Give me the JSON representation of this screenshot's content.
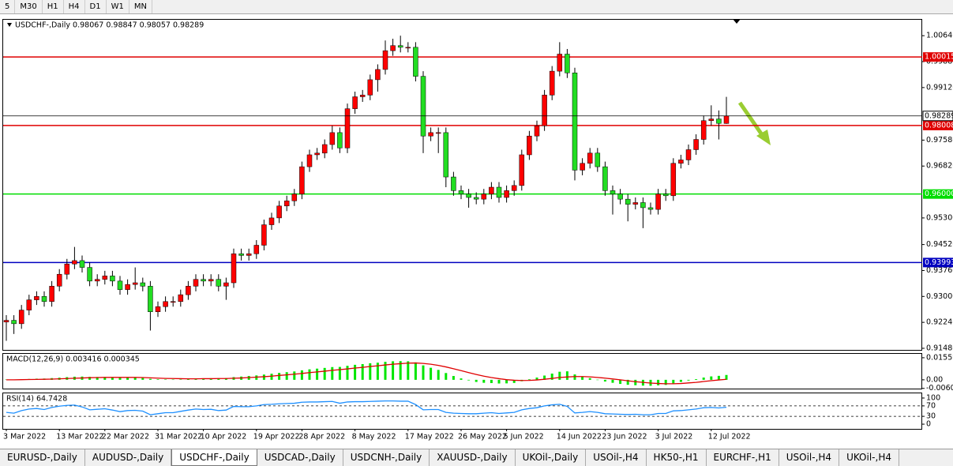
{
  "toolbar": [
    "5",
    "M30",
    "H1",
    "H4",
    "D1",
    "W1",
    "MN"
  ],
  "tabs": [
    "EURUSD-,Daily",
    "AUDUSD-,Daily",
    "USDCHF-,Daily",
    "USDCAD-,Daily",
    "USDCNH-,Daily",
    "XAUUSD-,Daily",
    "UKOil-,Daily",
    "USOil-,H4",
    "HK50-,H1",
    "EURCHF-,H1",
    "USOil-,H4",
    "UKOil-,H4"
  ],
  "active_tab": 2,
  "chart_data": [
    {
      "type": "candlestick",
      "title": "USDCHF-,Daily  0.98067 0.98847 0.98057 0.98289",
      "categories": [
        "3 Mar 2022",
        null,
        null,
        null,
        null,
        null,
        null,
        "13 Mar 2022",
        null,
        null,
        null,
        null,
        null,
        "22 Mar 2022",
        null,
        null,
        null,
        null,
        null,
        null,
        "31 Mar 2022",
        null,
        null,
        null,
        null,
        null,
        "10 Apr 2022",
        null,
        null,
        null,
        null,
        null,
        null,
        "19 Apr 2022",
        null,
        null,
        null,
        null,
        null,
        "28 Apr 2022",
        null,
        null,
        null,
        null,
        null,
        null,
        "8 May 2022",
        null,
        null,
        null,
        null,
        null,
        null,
        "17 May 2022",
        null,
        null,
        null,
        null,
        null,
        null,
        "26 May 2022",
        null,
        null,
        null,
        null,
        null,
        "5 Jun 2022",
        null,
        null,
        null,
        null,
        null,
        null,
        "14 Jun 2022",
        null,
        null,
        null,
        null,
        null,
        "23 Jun 2022",
        null,
        null,
        null,
        null,
        null,
        null,
        "3 Jul 2022",
        null,
        null,
        null,
        null,
        null,
        null,
        "12 Jul 2022",
        null,
        null
      ],
      "open": [
        0.9225,
        0.923,
        0.922,
        0.926,
        0.929,
        0.93,
        0.9285,
        0.933,
        0.9365,
        0.9395,
        0.9405,
        0.9385,
        0.9345,
        0.935,
        0.936,
        0.9345,
        0.932,
        0.9335,
        0.934,
        0.933,
        0.9255,
        0.927,
        0.9285,
        0.9285,
        0.9305,
        0.933,
        0.935,
        0.9345,
        0.935,
        0.933,
        0.934,
        0.9425,
        0.942,
        0.9425,
        0.945,
        0.951,
        0.953,
        0.9565,
        0.958,
        0.96,
        0.968,
        0.9715,
        0.972,
        0.9745,
        0.978,
        0.9735,
        0.985,
        0.9885,
        0.989,
        0.9935,
        0.9965,
        1.002,
        1.0035,
        1.003,
        1.003,
        0.9945,
        0.977,
        0.978,
        0.978,
        0.965,
        0.961,
        0.96,
        0.959,
        0.9585,
        0.96,
        0.962,
        0.959,
        0.961,
        0.9625,
        0.9715,
        0.977,
        0.98,
        0.989,
        0.996,
        1.001,
        0.9955,
        0.967,
        0.969,
        0.972,
        0.968,
        0.961,
        0.96,
        0.9585,
        0.957,
        0.9575,
        0.956,
        0.9555,
        0.96,
        0.9595,
        0.969,
        0.97,
        0.973,
        0.976,
        0.9815,
        0.982,
        0.98067
      ],
      "high": [
        0.9245,
        0.9245,
        0.9275,
        0.9305,
        0.9315,
        0.9315,
        0.9345,
        0.938,
        0.941,
        0.9445,
        0.942,
        0.94,
        0.9365,
        0.9375,
        0.9375,
        0.936,
        0.935,
        0.9385,
        0.9355,
        0.9345,
        0.9285,
        0.93,
        0.93,
        0.932,
        0.9345,
        0.9365,
        0.9365,
        0.9365,
        0.9365,
        0.9355,
        0.944,
        0.944,
        0.944,
        0.9465,
        0.9525,
        0.9545,
        0.958,
        0.9595,
        0.9615,
        0.9695,
        0.973,
        0.9735,
        0.976,
        0.98,
        0.9795,
        0.9865,
        0.99,
        0.9905,
        0.995,
        0.998,
        1.005,
        1.0055,
        1.0064,
        1.0045,
        1.0045,
        0.996,
        0.9795,
        0.9795,
        0.9795,
        0.9665,
        0.9625,
        0.9615,
        0.9605,
        0.9615,
        0.9635,
        0.9635,
        0.9625,
        0.964,
        0.973,
        0.9785,
        0.9815,
        0.9905,
        0.9975,
        1.0045,
        1.0025,
        0.997,
        0.9705,
        0.9735,
        0.9735,
        0.9695,
        0.9625,
        0.9615,
        0.96,
        0.959,
        0.959,
        0.9575,
        0.9615,
        0.9615,
        0.9705,
        0.9715,
        0.9745,
        0.9775,
        0.983,
        0.986,
        0.9845,
        0.98847
      ],
      "low": [
        0.917,
        0.919,
        0.9205,
        0.9245,
        0.9275,
        0.927,
        0.927,
        0.9315,
        0.935,
        0.938,
        0.937,
        0.933,
        0.933,
        0.9335,
        0.933,
        0.9305,
        0.9305,
        0.932,
        0.9315,
        0.92,
        0.924,
        0.9255,
        0.927,
        0.927,
        0.929,
        0.9315,
        0.933,
        0.933,
        0.9315,
        0.929,
        0.9325,
        0.9405,
        0.9405,
        0.941,
        0.9435,
        0.9495,
        0.9515,
        0.955,
        0.9565,
        0.9585,
        0.9665,
        0.97,
        0.9705,
        0.973,
        0.972,
        0.972,
        0.9835,
        0.987,
        0.9875,
        0.99,
        0.995,
        1.0005,
        1.0015,
        1.0015,
        0.993,
        0.972,
        0.9755,
        0.972,
        0.962,
        0.9595,
        0.9585,
        0.956,
        0.957,
        0.957,
        0.9585,
        0.9575,
        0.9575,
        0.9595,
        0.961,
        0.97,
        0.9755,
        0.9785,
        0.9875,
        0.9945,
        0.994,
        0.964,
        0.9655,
        0.9675,
        0.9665,
        0.9595,
        0.954,
        0.957,
        0.952,
        0.9555,
        0.95,
        0.954,
        0.954,
        0.958,
        0.958,
        0.9675,
        0.9685,
        0.9715,
        0.9745,
        0.98,
        0.976,
        0.98057
      ],
      "close": [
        0.923,
        0.922,
        0.926,
        0.929,
        0.93,
        0.9285,
        0.933,
        0.9365,
        0.9395,
        0.9405,
        0.9385,
        0.9345,
        0.935,
        0.936,
        0.9345,
        0.932,
        0.9335,
        0.934,
        0.933,
        0.9255,
        0.927,
        0.9285,
        0.9285,
        0.9305,
        0.933,
        0.935,
        0.9345,
        0.935,
        0.933,
        0.934,
        0.9425,
        0.942,
        0.9425,
        0.945,
        0.951,
        0.953,
        0.9565,
        0.958,
        0.96,
        0.968,
        0.9715,
        0.972,
        0.9745,
        0.978,
        0.9735,
        0.985,
        0.9885,
        0.989,
        0.9935,
        0.9965,
        1.002,
        1.0035,
        1.003,
        1.003,
        0.9945,
        0.977,
        0.978,
        0.978,
        0.965,
        0.961,
        0.96,
        0.959,
        0.9585,
        0.96,
        0.962,
        0.959,
        0.961,
        0.9625,
        0.9715,
        0.977,
        0.98,
        0.989,
        0.996,
        1.001,
        0.9955,
        0.967,
        0.969,
        0.972,
        0.968,
        0.961,
        0.96,
        0.9585,
        0.957,
        0.9575,
        0.956,
        0.9555,
        0.96,
        0.9595,
        0.969,
        0.97,
        0.973,
        0.976,
        0.9815,
        0.982,
        0.9807,
        0.98289
      ],
      "up_color": "#ff0000",
      "down_color": "#22dd22",
      "ylim": [
        0.9141,
        1.0113
      ],
      "yticks": [
        {
          "value": 1.0064,
          "label": "1.00640"
        },
        {
          "value": 0.9988,
          "label": "0.99880"
        },
        {
          "value": 0.9912,
          "label": "0.99120"
        },
        {
          "value": 0.9758,
          "label": "0.97580"
        },
        {
          "value": 0.9682,
          "label": "0.96820"
        },
        {
          "value": 0.953,
          "label": "0.95300"
        },
        {
          "value": 0.9452,
          "label": "0.94520"
        },
        {
          "value": 0.9376,
          "label": "0.93760"
        },
        {
          "value": 0.93,
          "label": "0.93000"
        },
        {
          "value": 0.9224,
          "label": "0.92240"
        },
        {
          "value": 0.9148,
          "label": "0.91480"
        }
      ],
      "hlines": [
        {
          "value": 1.00015,
          "color": "#e00000"
        },
        {
          "value": 0.98008,
          "color": "#e00000"
        },
        {
          "value": {
            "value": 0.96,
            "label": "0.96000"
          },
          "color": "#00dd00"
        },
        {
          "value": 0.93993,
          "color": "#0000c0"
        }
      ]
    },
    {
      "type": "macd",
      "title": "MACD(12,26,9) 0.003416 0.000345",
      "values": [
        0.0002,
        0.0001,
        0.0003,
        0.0006,
        0.0008,
        0.0009,
        0.0012,
        0.0015,
        0.0019,
        0.0022,
        0.0023,
        0.0021,
        0.002,
        0.002,
        0.0019,
        0.0016,
        0.0015,
        0.0015,
        0.0013,
        0.0007,
        0.0004,
        0.0003,
        0.0002,
        0.0003,
        0.0005,
        0.0008,
        0.0009,
        0.0011,
        0.0011,
        0.0012,
        0.0019,
        0.0023,
        0.0027,
        0.0031,
        0.0037,
        0.0043,
        0.0049,
        0.0054,
        0.0059,
        0.0067,
        0.0074,
        0.0079,
        0.0084,
        0.009,
        0.0091,
        0.0099,
        0.0106,
        0.0111,
        0.0117,
        0.0121,
        0.0127,
        0.0131,
        0.0132,
        0.0131,
        0.0123,
        0.0102,
        0.0085,
        0.007,
        0.0048,
        0.0027,
        0.001,
        -0.0004,
        -0.0015,
        -0.0021,
        -0.0023,
        -0.0026,
        -0.0025,
        -0.0022,
        -0.001,
        0.0004,
        0.0016,
        0.003,
        0.0044,
        0.0057,
        0.006,
        0.0038,
        0.0022,
        0.0012,
        0.0001,
        -0.0012,
        -0.0021,
        -0.0029,
        -0.0035,
        -0.0038,
        -0.0041,
        -0.0042,
        -0.0039,
        -0.0036,
        -0.0025,
        -0.0015,
        -0.0005,
        0.0005,
        0.0016,
        0.0024,
        0.0028,
        0.003416
      ],
      "color": "#00e600",
      "signal": {
        "color": "#e00000",
        "values": [
          0.0,
          0.0,
          0.0001,
          0.0002,
          0.0003,
          0.0004,
          0.0005,
          0.0007,
          0.0009,
          0.0011,
          0.0013,
          0.0015,
          0.0016,
          0.0017,
          0.0017,
          0.0017,
          0.0017,
          0.0017,
          0.0016,
          0.0014,
          0.0012,
          0.001,
          0.0009,
          0.0008,
          0.0007,
          0.0007,
          0.0008,
          0.0008,
          0.0009,
          0.0009,
          0.0011,
          0.0013,
          0.0016,
          0.0019,
          0.0022,
          0.0026,
          0.0031,
          0.0035,
          0.004,
          0.0045,
          0.0051,
          0.0056,
          0.0061,
          0.0067,
          0.0072,
          0.0077,
          0.0083,
          0.0088,
          0.0094,
          0.0099,
          0.0105,
          0.011,
          0.0114,
          0.0118,
          0.0119,
          0.0116,
          0.011,
          0.0102,
          0.0091,
          0.0078,
          0.0065,
          0.0051,
          0.0038,
          0.0026,
          0.0016,
          0.0008,
          0.0001,
          -0.0003,
          -0.0005,
          -0.0004,
          -0.0001,
          0.0004,
          0.001,
          0.0017,
          0.002,
          0.0023,
          0.0023,
          0.0021,
          0.0017,
          0.0012,
          0.0006,
          0.0,
          -0.0007,
          -0.0013,
          -0.0018,
          -0.0023,
          -0.0026,
          -0.0028,
          -0.0028,
          -0.0026,
          -0.0022,
          -0.0018,
          -0.0012,
          -0.0006,
          -0.0001,
          0.000345
        ]
      },
      "ylim": [
        -0.0062,
        0.0189
      ],
      "yticks": [
        0.015596,
        {
          "value": 0,
          "label": "0.00"
        },
        -0.00605
      ]
    },
    {
      "type": "rsi",
      "title": "RSI(14) 64.7428",
      "values": [
        45,
        42,
        52,
        58,
        60,
        56,
        64,
        69,
        72,
        73,
        66,
        55,
        57,
        59,
        54,
        48,
        52,
        53,
        50,
        36,
        40,
        44,
        44,
        49,
        54,
        58,
        56,
        57,
        52,
        54,
        68,
        67,
        67,
        70,
        75,
        76,
        78,
        79,
        80,
        84,
        85,
        85,
        86,
        87,
        80,
        85,
        86,
        86,
        87,
        88,
        89,
        89,
        88,
        88,
        75,
        55,
        56,
        56,
        45,
        42,
        41,
        40,
        40,
        42,
        44,
        41,
        43,
        45,
        55,
        60,
        63,
        70,
        74,
        76,
        68,
        43,
        45,
        48,
        45,
        40,
        39,
        38,
        37,
        38,
        36,
        36,
        41,
        41,
        51,
        52,
        55,
        58,
        63,
        64,
        62,
        64.7428
      ],
      "color": "#1e90ff",
      "ylim": [
        -18,
        121
      ],
      "yticks": [
        100,
        70,
        30,
        0
      ],
      "levels": [
        70,
        30
      ]
    }
  ]
}
